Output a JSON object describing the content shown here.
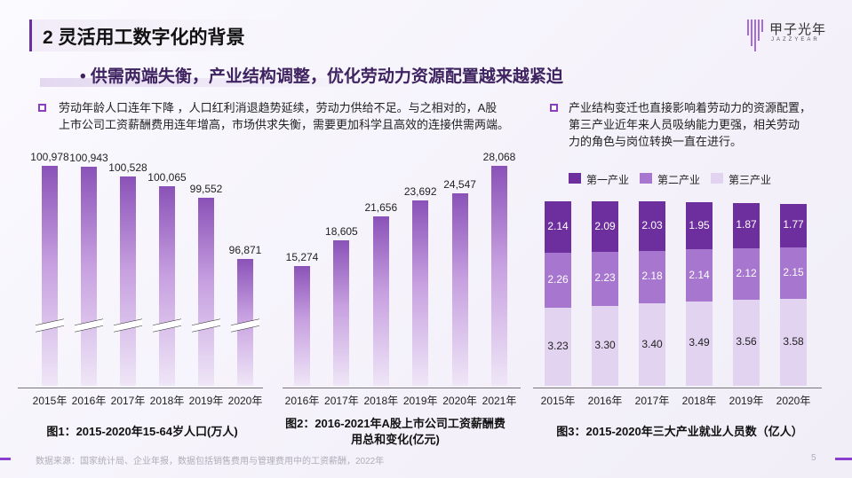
{
  "header": {
    "title": "2 灵活用工数字化的背景",
    "subtitle": "• 供需两端失衡，产业结构调整，优化劳动力资源配置越来越紧迫"
  },
  "logo": {
    "name": "甲子光年",
    "sub": "JAZZYEAR"
  },
  "left_text": {
    "lines": [
      "劳动年龄人口连年下降 ，人口红利消退趋势延续，劳动力供给不足。与之相对的，A股",
      "上市公司工资薪酬费用连年增高，市场供求失衡，需要更加科学且高效的连接供需两端。"
    ]
  },
  "right_text": {
    "lines": [
      "产业结构变迁也直接影响着劳动力的资源配置，",
      "第三产业近年来人员吸纳能力更强，相关劳动",
      "力的角色与岗位转换一直在进行。"
    ]
  },
  "chart_data": [
    {
      "type": "bar",
      "title": "图1：2015-2020年15-64岁人口(万人)",
      "categories": [
        "2015年",
        "2016年",
        "2017年",
        "2018年",
        "2019年",
        "2020年"
      ],
      "values": [
        100978,
        100943,
        100528,
        100065,
        99552,
        96871
      ],
      "value_labels": [
        "100,978",
        "100,943",
        "100,528",
        "100,065",
        "99,552",
        "96,871"
      ],
      "axis_break": true,
      "color": "#8a52b8"
    },
    {
      "type": "bar",
      "title_lines": [
        "图2：2016-2021年A股上市公司工资薪酬费",
        "用总和变化(亿元)"
      ],
      "categories": [
        "2016年",
        "2017年",
        "2018年",
        "2019年",
        "2020年",
        "2021年"
      ],
      "values": [
        15274,
        18605,
        21656,
        23692,
        24547,
        28068
      ],
      "value_labels": [
        "15,274",
        "18,605",
        "21,656",
        "23,692",
        "24,547",
        "28,068"
      ],
      "color": "#8a52b8"
    },
    {
      "type": "bar",
      "stacked": true,
      "title": "图3：2015-2020年三大产业就业人员数（亿人）",
      "categories": [
        "2015年",
        "2016年",
        "2017年",
        "2018年",
        "2019年",
        "2020年"
      ],
      "legend_position": "top",
      "series": [
        {
          "name": "第一产业",
          "values": [
            2.14,
            2.09,
            2.03,
            1.95,
            1.87,
            1.77
          ],
          "color": "#6e2f9e"
        },
        {
          "name": "第二产业",
          "values": [
            2.26,
            2.23,
            2.18,
            2.14,
            2.12,
            2.15
          ],
          "color": "#a777cf"
        },
        {
          "name": "第三产业",
          "values": [
            3.23,
            3.3,
            3.4,
            3.49,
            3.56,
            3.58
          ],
          "color": "#e2d3f1"
        }
      ]
    }
  ],
  "footer": {
    "source": "数据来源：国家统计局、企业年报，数据包括销售费用与管理费用中的工资薪酬，2022年",
    "page": "5"
  }
}
